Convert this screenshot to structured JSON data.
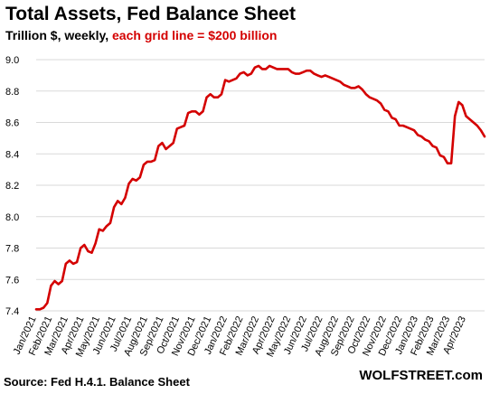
{
  "header": {
    "title": "Total Assets, Fed Balance Sheet",
    "subtitle_main": "Trillion $, weekly, ",
    "subtitle_note": "each grid line = $200 billion"
  },
  "footer": {
    "source": "Source: Fed H.4.1. Balance Sheet",
    "brand": "WOLFSTREET.com"
  },
  "colors": {
    "line": "#d40000",
    "grid": "#d9d9d9",
    "note": "#d40000"
  },
  "chart_data": {
    "type": "line",
    "title": "Total Assets, Fed Balance Sheet",
    "subtitle": "Trillion $, weekly, each grid line = $200 billion",
    "xlabel": "",
    "ylabel": "",
    "ylim": [
      7.4,
      9.0
    ],
    "yticks": [
      "7.4",
      "7.6",
      "7.8",
      "8.0",
      "8.2",
      "8.4",
      "8.6",
      "8.8",
      "9.0"
    ],
    "grid": "horizontal",
    "xticks": [
      "Jan/2021",
      "Feb/2021",
      "Mar/2021",
      "Apr/2021",
      "May/2021",
      "Jun/2021",
      "Jul/2021",
      "Aug/2021",
      "Sep/2021",
      "Oct/2021",
      "Nov/2021",
      "Dec/2021",
      "Jan/2022",
      "Feb/2022",
      "Mar/2022",
      "Apr/2022",
      "May/2022",
      "Jun/2022",
      "Jul/2022",
      "Aug/2022",
      "Sep/2022",
      "Oct/2022",
      "Nov/2022",
      "Dec/2022",
      "Jan/2023",
      "Feb/2023",
      "Mar/2023",
      "Apr/2023"
    ],
    "series": [
      {
        "values": [
          7.41,
          7.41,
          7.42,
          7.45,
          7.56,
          7.59,
          7.57,
          7.59,
          7.7,
          7.72,
          7.7,
          7.71,
          7.8,
          7.82,
          7.78,
          7.77,
          7.83,
          7.92,
          7.91,
          7.94,
          7.96,
          8.06,
          8.1,
          8.08,
          8.12,
          8.21,
          8.24,
          8.23,
          8.25,
          8.33,
          8.35,
          8.35,
          8.36,
          8.45,
          8.47,
          8.43,
          8.45,
          8.47,
          8.56,
          8.57,
          8.58,
          8.66,
          8.67,
          8.67,
          8.65,
          8.67,
          8.76,
          8.78,
          8.76,
          8.76,
          8.78,
          8.87,
          8.86,
          8.87,
          8.88,
          8.91,
          8.92,
          8.9,
          8.91,
          8.95,
          8.96,
          8.94,
          8.94,
          8.96,
          8.95,
          8.94,
          8.94,
          8.94,
          8.94,
          8.92,
          8.91,
          8.91,
          8.92,
          8.93,
          8.93,
          8.91,
          8.9,
          8.89,
          8.9,
          8.89,
          8.88,
          8.87,
          8.86,
          8.84,
          8.83,
          8.82,
          8.82,
          8.83,
          8.81,
          8.78,
          8.76,
          8.75,
          8.74,
          8.72,
          8.68,
          8.67,
          8.63,
          8.62,
          8.58,
          8.58,
          8.57,
          8.56,
          8.55,
          8.52,
          8.51,
          8.49,
          8.48,
          8.45,
          8.44,
          8.39,
          8.38,
          8.34,
          8.34,
          8.64,
          8.73,
          8.71,
          8.64,
          8.62,
          8.6,
          8.58,
          8.55,
          8.51
        ]
      }
    ]
  }
}
